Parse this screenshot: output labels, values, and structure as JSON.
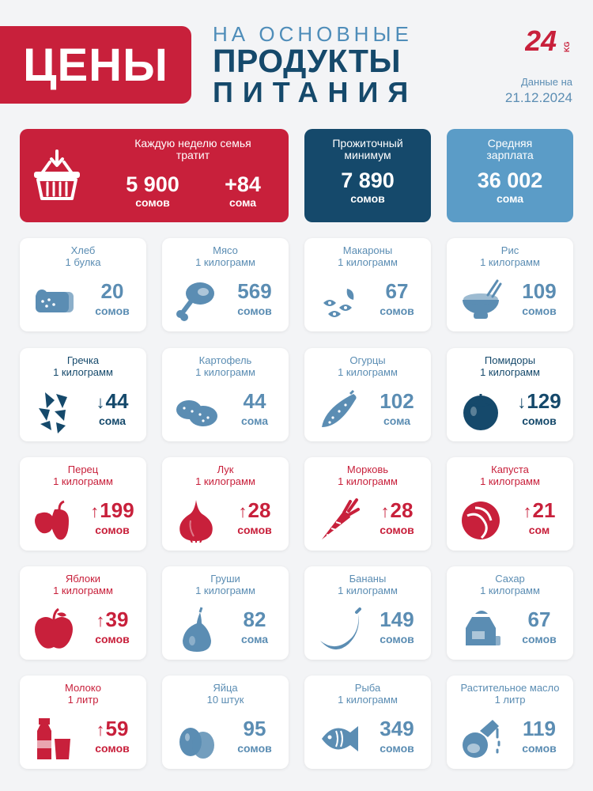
{
  "header": {
    "title": "ЦЕНЫ",
    "subtitle_line1": "НА ОСНОВНЫЕ",
    "subtitle_line2": "ПРОДУКТЫ",
    "subtitle_line3": "ПИТАНИЯ",
    "logo_text": "24",
    "logo_suffix": "KG",
    "date_label": "Данные на",
    "date_value": "21.12.2024"
  },
  "summary": {
    "weekly": {
      "label": "Каждую неделю семья тратит",
      "value": "5 900",
      "unit": "сомов",
      "change": "+84",
      "change_unit": "сома"
    },
    "minimum": {
      "label": "Прожиточный минимум",
      "value": "7 890",
      "unit": "сомов"
    },
    "salary": {
      "label": "Средняя зарплата",
      "value": "36 002",
      "unit": "сома"
    }
  },
  "colors": {
    "red": "#c8203b",
    "dark": "#15496b",
    "light": "#5b9cc7",
    "neutral_text": "#5b8db3"
  },
  "items": [
    {
      "name": "Хлеб",
      "qty": "1 булка",
      "price": "20",
      "unit": "сомов",
      "trend": "none",
      "icon": "bread-icon"
    },
    {
      "name": "Мясо",
      "qty": "1 килограмм",
      "price": "569",
      "unit": "сомов",
      "trend": "none",
      "icon": "meat-icon"
    },
    {
      "name": "Макароны",
      "qty": "1 килограмм",
      "price": "67",
      "unit": "сомов",
      "trend": "none",
      "icon": "pasta-icon"
    },
    {
      "name": "Рис",
      "qty": "1 килограмм",
      "price": "109",
      "unit": "сомов",
      "trend": "none",
      "icon": "rice-icon"
    },
    {
      "name": "Гречка",
      "qty": "1 килограмм",
      "price": "44",
      "unit": "сома",
      "trend": "down",
      "icon": "buckwheat-icon"
    },
    {
      "name": "Картофель",
      "qty": "1 килограмм",
      "price": "44",
      "unit": "сома",
      "trend": "none",
      "icon": "potato-icon"
    },
    {
      "name": "Огурцы",
      "qty": "1 килограмм",
      "price": "102",
      "unit": "сома",
      "trend": "none",
      "icon": "cucumber-icon"
    },
    {
      "name": "Помидоры",
      "qty": "1 килограмм",
      "price": "129",
      "unit": "сомов",
      "trend": "down",
      "icon": "tomato-icon"
    },
    {
      "name": "Перец",
      "qty": "1 килограмм",
      "price": "199",
      "unit": "сомов",
      "trend": "up",
      "icon": "pepper-icon"
    },
    {
      "name": "Лук",
      "qty": "1 килограмм",
      "price": "28",
      "unit": "сомов",
      "trend": "up",
      "icon": "onion-icon"
    },
    {
      "name": "Морковь",
      "qty": "1 килограмм",
      "price": "28",
      "unit": "сомов",
      "trend": "up",
      "icon": "carrot-icon"
    },
    {
      "name": "Капуста",
      "qty": "1 килограмм",
      "price": "21",
      "unit": "сом",
      "trend": "up",
      "icon": "cabbage-icon"
    },
    {
      "name": "Яблоки",
      "qty": "1 килограмм",
      "price": "39",
      "unit": "сомов",
      "trend": "up",
      "icon": "apple-icon"
    },
    {
      "name": "Груши",
      "qty": "1 килограмм",
      "price": "82",
      "unit": "сома",
      "trend": "none",
      "icon": "pear-icon"
    },
    {
      "name": "Бананы",
      "qty": "1 килограмм",
      "price": "149",
      "unit": "сомов",
      "trend": "none",
      "icon": "banana-icon"
    },
    {
      "name": "Сахар",
      "qty": "1 килограмм",
      "price": "67",
      "unit": "сомов",
      "trend": "none",
      "icon": "sugar-icon"
    },
    {
      "name": "Молоко",
      "qty": "1 литр",
      "price": "59",
      "unit": "сомов",
      "trend": "up",
      "icon": "milk-icon"
    },
    {
      "name": "Яйца",
      "qty": "10 штук",
      "price": "95",
      "unit": "сомов",
      "trend": "none",
      "icon": "eggs-icon"
    },
    {
      "name": "Рыба",
      "qty": "1 килограмм",
      "price": "349",
      "unit": "сомов",
      "trend": "none",
      "icon": "fish-icon"
    },
    {
      "name": "Растительное масло",
      "qty": "1 литр",
      "price": "119",
      "unit": "сомов",
      "trend": "none",
      "icon": "oil-icon"
    }
  ]
}
